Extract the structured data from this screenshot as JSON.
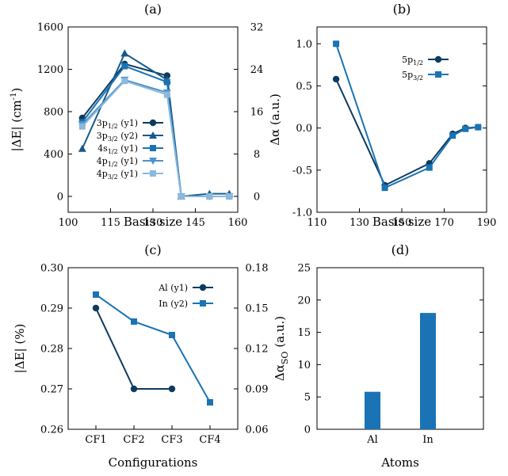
{
  "chart_data": [
    {
      "panel": "(a)",
      "type": "line",
      "xlabel": "Basis size",
      "ylabel": "|ΔE| (cm-1)",
      "xlim": [
        100,
        160
      ],
      "xticks": [
        "100",
        "115",
        "130",
        "145",
        "160"
      ],
      "ylim": [
        -150,
        1600
      ],
      "yticks": [
        "0",
        "400",
        "800",
        "1200",
        "1600"
      ],
      "y2lim": [
        -3,
        32
      ],
      "y2ticks": [
        "0",
        "8",
        "16",
        "24",
        "32"
      ],
      "legend": "bottom-left",
      "series": [
        {
          "legend": "3p1/2 (y1)",
          "axis": "y1",
          "marker": "circle",
          "color": "#0d3b5e",
          "x": [
            105,
            120,
            135,
            140,
            150,
            157
          ],
          "y": [
            740,
            1250,
            1140,
            0,
            0,
            0
          ]
        },
        {
          "legend": "3p3/2 (y2)",
          "axis": "y2",
          "marker": "triangle",
          "color": "#155a8a",
          "x": [
            105,
            120,
            135,
            140,
            150,
            157
          ],
          "y": [
            9,
            27,
            22,
            0,
            0.5,
            0.5
          ]
        },
        {
          "legend": "4s1/2 (y1)",
          "axis": "y1",
          "marker": "square",
          "color": "#1a73b5",
          "x": [
            105,
            120,
            135,
            140,
            150,
            157
          ],
          "y": [
            700,
            1230,
            1080,
            0,
            0,
            0
          ]
        },
        {
          "legend": "4p1/2 (y1)",
          "axis": "y1",
          "marker": "triangle-down",
          "color": "#4f92c6",
          "x": [
            105,
            120,
            135,
            140,
            150,
            157
          ],
          "y": [
            680,
            1100,
            980,
            0,
            0,
            0
          ]
        },
        {
          "legend": "4p3/2 (y1)",
          "axis": "y1",
          "marker": "square",
          "color": "#8bb8dd",
          "x": [
            105,
            120,
            135,
            140,
            150,
            157
          ],
          "y": [
            660,
            1090,
            960,
            0,
            0,
            0
          ]
        }
      ]
    },
    {
      "panel": "(b)",
      "type": "line",
      "xlabel": "Basis size",
      "ylabel": "Δα (a.u.)",
      "xlim": [
        110,
        190
      ],
      "xticks": [
        "110",
        "130",
        "150",
        "170",
        "190"
      ],
      "ylim": [
        -1.0,
        1.2
      ],
      "yticks": [
        "-1.0",
        "-0.5",
        "0.0",
        "0.5",
        "1.0"
      ],
      "legend": "top-right",
      "series": [
        {
          "legend": "5p1/2",
          "marker": "circle",
          "color": "#0d3b5e",
          "x": [
            119,
            142,
            163,
            174,
            180,
            186
          ],
          "y": [
            0.58,
            -0.68,
            -0.42,
            -0.07,
            0.0,
            0.01
          ]
        },
        {
          "legend": "5p3/2",
          "marker": "square",
          "color": "#1a73b5",
          "x": [
            119,
            142,
            163,
            174,
            180,
            186
          ],
          "y": [
            1.0,
            -0.71,
            -0.47,
            -0.09,
            -0.01,
            0.01
          ]
        }
      ]
    },
    {
      "panel": "(c)",
      "type": "line",
      "xlabel": "Configurations",
      "ylabel": "|ΔE| (%)",
      "categories": [
        "CF1",
        "CF2",
        "CF3",
        "CF4"
      ],
      "ylim": [
        0.26,
        0.3
      ],
      "yticks": [
        "0.26",
        "0.27",
        "0.28",
        "0.29",
        "0.30"
      ],
      "y2lim": [
        0.06,
        0.18
      ],
      "y2ticks": [
        "0.06",
        "0.09",
        "0.12",
        "0.15",
        "0.18"
      ],
      "legend": "top-right",
      "series": [
        {
          "legend": "Al (y1)",
          "axis": "y1",
          "marker": "circle",
          "color": "#0d3b5e",
          "values": [
            0.29,
            0.27,
            0.27,
            null
          ]
        },
        {
          "legend": "In (y2)",
          "axis": "y2",
          "marker": "square",
          "color": "#1a73b5",
          "values": [
            0.16,
            0.14,
            0.13,
            0.08
          ]
        }
      ]
    },
    {
      "panel": "(d)",
      "type": "bar",
      "xlabel": "Atoms",
      "ylabel": "ΔαSO (a.u.)",
      "categories": [
        "Al",
        "In"
      ],
      "values": [
        5.8,
        18.0
      ],
      "ylim": [
        0,
        25
      ],
      "yticks": [
        "0",
        "5",
        "10",
        "15",
        "20",
        "25"
      ],
      "color": "#1a73b5"
    }
  ]
}
